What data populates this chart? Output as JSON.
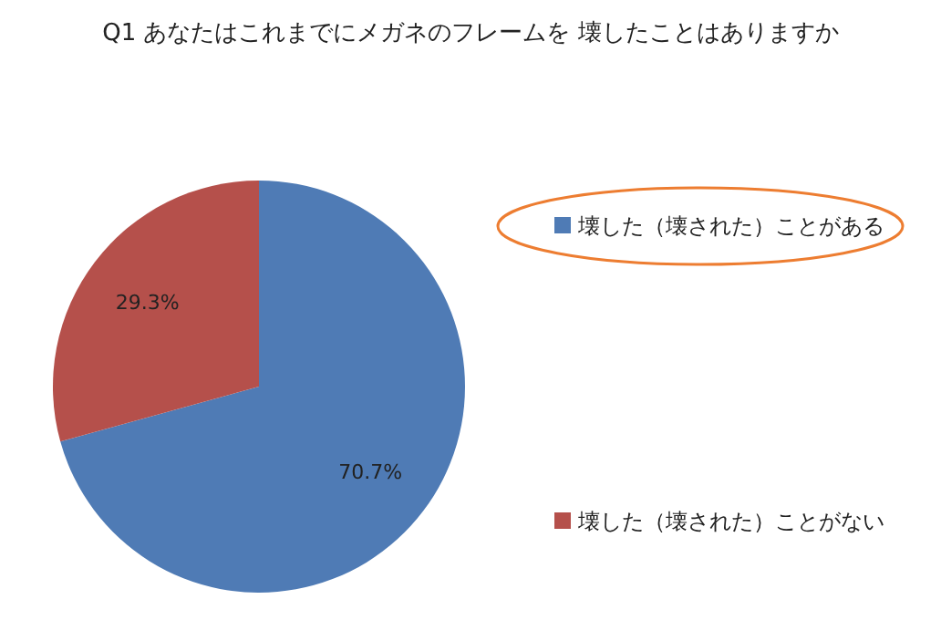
{
  "chart_data": {
    "type": "pie",
    "title": "Q1 あなたはこれまでにメガネのフレームを 壊したことはありますか",
    "categories": [
      "壊した（壊された）ことがある",
      "壊した（壊された）ことがない"
    ],
    "values": [
      70.7,
      29.3
    ],
    "colors": [
      "#4f7bb5",
      "#b5504b"
    ],
    "value_labels": [
      "70.7%",
      "29.3%"
    ],
    "legend": "right"
  }
}
